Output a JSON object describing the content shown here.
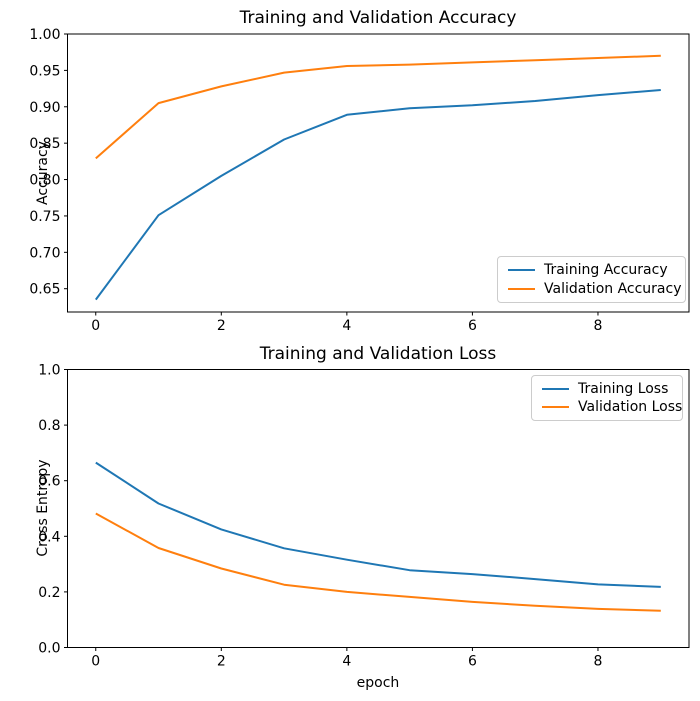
{
  "figure": {
    "background": "#ffffff",
    "axis_color": "#000000"
  },
  "chart_data": [
    {
      "type": "line",
      "title": "Training and Validation Accuracy",
      "xlabel": "",
      "ylabel": "Accuracy",
      "x": [
        0,
        1,
        2,
        3,
        4,
        5,
        6,
        7,
        8,
        9
      ],
      "series": [
        {
          "name": "Training Accuracy",
          "color": "#1f77b4",
          "values": [
            0.635,
            0.751,
            0.805,
            0.855,
            0.889,
            0.898,
            0.902,
            0.908,
            0.916,
            0.923
          ]
        },
        {
          "name": "Validation Accuracy",
          "color": "#ff7f0e",
          "values": [
            0.829,
            0.905,
            0.928,
            0.947,
            0.956,
            0.958,
            0.961,
            0.964,
            0.967,
            0.97
          ]
        }
      ],
      "xlim": [
        -0.45,
        9.45
      ],
      "ylim": [
        0.618,
        1.0
      ],
      "xticks": {
        "values": [
          0,
          2,
          4,
          6,
          8
        ],
        "labels": [
          "0",
          "2",
          "4",
          "6",
          "8"
        ]
      },
      "yticks": {
        "values": [
          0.65,
          0.7,
          0.75,
          0.8,
          0.85,
          0.9,
          0.95,
          1.0
        ],
        "labels": [
          "0.65",
          "0.70",
          "0.75",
          "0.80",
          "0.85",
          "0.90",
          "0.95",
          "1.00"
        ]
      },
      "grid": false,
      "legend": {
        "position": "lower right",
        "entries": [
          "Training Accuracy",
          "Validation Accuracy"
        ]
      }
    },
    {
      "type": "line",
      "title": "Training and Validation Loss",
      "xlabel": "epoch",
      "ylabel": "Cross Entropy",
      "x": [
        0,
        1,
        2,
        3,
        4,
        5,
        6,
        7,
        8,
        9
      ],
      "series": [
        {
          "name": "Training Loss",
          "color": "#1f77b4",
          "values": [
            0.665,
            0.518,
            0.425,
            0.357,
            0.316,
            0.278,
            0.264,
            0.246,
            0.227,
            0.218
          ]
        },
        {
          "name": "Validation Loss",
          "color": "#ff7f0e",
          "values": [
            0.482,
            0.358,
            0.284,
            0.226,
            0.2,
            0.182,
            0.164,
            0.15,
            0.139,
            0.132
          ]
        }
      ],
      "xlim": [
        -0.45,
        9.45
      ],
      "ylim": [
        0.0,
        1.0
      ],
      "xticks": {
        "values": [
          0,
          2,
          4,
          6,
          8
        ],
        "labels": [
          "0",
          "2",
          "4",
          "6",
          "8"
        ]
      },
      "yticks": {
        "values": [
          0.0,
          0.2,
          0.4,
          0.6,
          0.8,
          1.0
        ],
        "labels": [
          "0.0",
          "0.2",
          "0.4",
          "0.6",
          "0.8",
          "1.0"
        ]
      },
      "grid": false,
      "legend": {
        "position": "upper right",
        "entries": [
          "Training Loss",
          "Validation Loss"
        ]
      }
    }
  ]
}
